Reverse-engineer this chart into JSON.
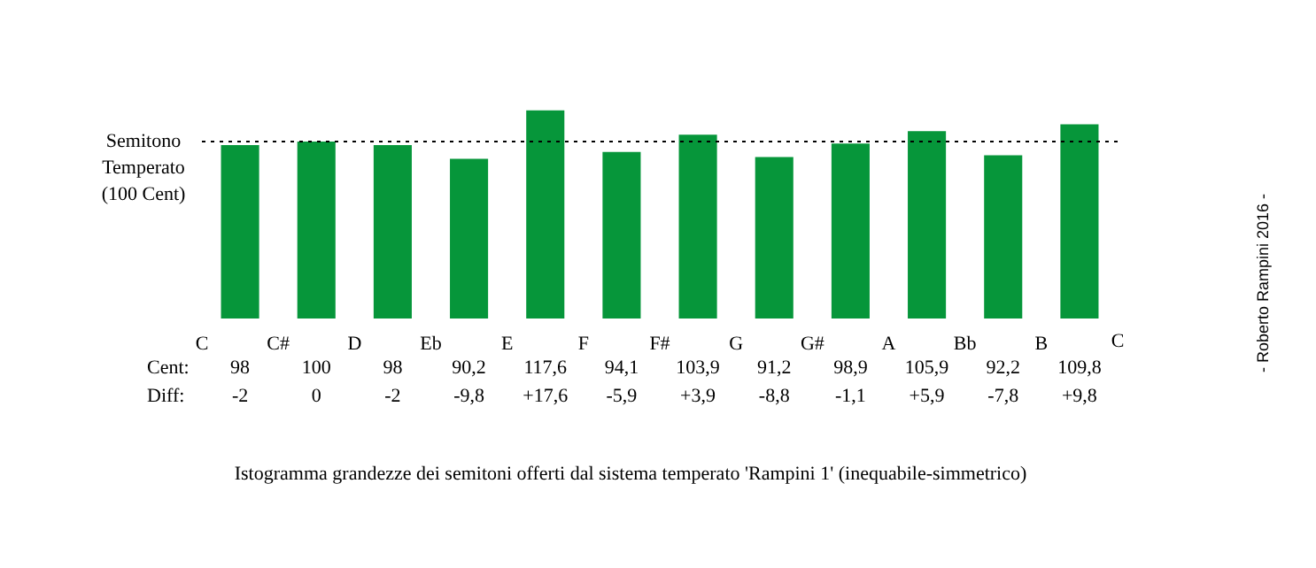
{
  "chart_data": {
    "type": "bar",
    "categories": [
      "C",
      "C#",
      "D",
      "Eb",
      "E",
      "F",
      "F#",
      "G",
      "G#",
      "A",
      "Bb",
      "B"
    ],
    "values": [
      98,
      100,
      98,
      90.2,
      117.6,
      94.1,
      103.9,
      91.2,
      98.9,
      105.9,
      92.2,
      109.8
    ],
    "color": "#06963a",
    "value_labels": [
      "98",
      "100",
      "98",
      "90,2",
      "117,6",
      "94,1",
      "103,9",
      "91,2",
      "98,9",
      "105,9",
      "92,2",
      "109,8"
    ],
    "ref_lines": [
      {
        "axis": "y",
        "value": 100,
        "label": "Semitono\nTemperato\n(100 Cent)",
        "line_style": "dotted",
        "color": "#000000"
      }
    ],
    "annotations": [
      "Istogramma grandezze dei semitoni offerti dal sistema temperato 'Rampini 1' (inequabile-simmetrico)",
      "- Roberto Rampini 2016 -",
      "C",
      "Cent:",
      "Diff:",
      "-2",
      "0",
      "-2",
      "-9,8",
      "+17,6",
      "-5,9",
      "+3,9",
      "-8,8",
      "-1,1",
      "+5,9",
      "-7,8",
      "+9,8"
    ],
    "grid": false
  }
}
